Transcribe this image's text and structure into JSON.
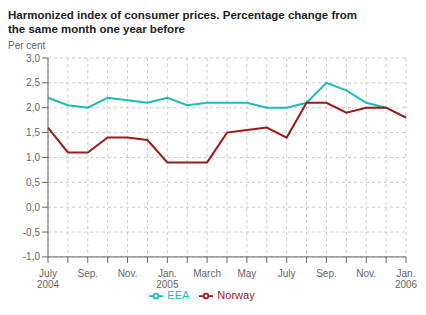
{
  "chart_data": {
    "type": "line",
    "title": "Harmonized index of consumer prices. Percentage change from",
    "subtitle": "the same month one year before",
    "ylabel": "Per cent",
    "categories": [
      "July\n2004",
      null,
      "Sep.",
      null,
      "Nov.",
      null,
      "Jan.\n2005",
      null,
      "March",
      null,
      "May",
      null,
      "July",
      null,
      "Sep.",
      null,
      "Nov.",
      null,
      "Jan.\n2006"
    ],
    "series": [
      {
        "name": "EEA",
        "color": "#1ABCBC",
        "values": [
          2.2,
          2.05,
          2.0,
          2.2,
          2.15,
          2.1,
          2.2,
          2.05,
          2.1,
          2.1,
          2.1,
          2.0,
          2.0,
          2.1,
          2.5,
          2.35,
          2.1,
          2.0,
          1.8
        ]
      },
      {
        "name": "Norway",
        "color": "#9B1A1A",
        "values": [
          1.6,
          1.1,
          1.1,
          1.4,
          1.4,
          1.35,
          0.9,
          0.9,
          0.9,
          1.5,
          1.55,
          1.6,
          1.4,
          2.1,
          2.1,
          1.9,
          2.0,
          2.0,
          1.8
        ]
      }
    ],
    "ylim": [
      -1.0,
      3.0
    ],
    "yticks": [
      {
        "value": -1.0,
        "label": "-1,0"
      },
      {
        "value": -0.5,
        "label": "-0,5"
      },
      {
        "value": 0.0,
        "label": "0,0"
      },
      {
        "value": 0.5,
        "label": "0,5"
      },
      {
        "value": 1.0,
        "label": "1,0"
      },
      {
        "value": 1.5,
        "label": "1,5"
      },
      {
        "value": 2.0,
        "label": "2,0"
      },
      {
        "value": 2.5,
        "label": "2,5"
      },
      {
        "value": 3.0,
        "label": "3,0"
      }
    ],
    "grid": true,
    "legend": "bottom"
  }
}
